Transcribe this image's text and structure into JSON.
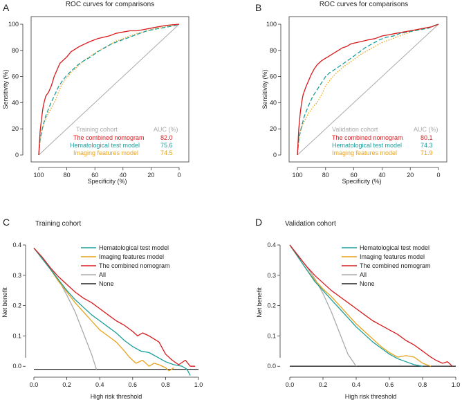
{
  "panels": {
    "A": {
      "label": "A",
      "title": "ROC curves for comparisons",
      "xlabel": "Specificity (%)",
      "ylabel": "Sensitivity (%)",
      "xticks": [
        "100",
        "80",
        "60",
        "40",
        "20",
        "0"
      ],
      "yticks": [
        "0",
        "20",
        "40",
        "60",
        "80",
        "100"
      ],
      "legend": {
        "header_left": "Training cohort",
        "header_right": "AUC (%)",
        "rows": [
          {
            "name": "The combined nomogram",
            "auc": "82.0"
          },
          {
            "name": "Hematological test model",
            "auc": "75.6"
          },
          {
            "name": "Imaging features model",
            "auc": "74.5"
          }
        ]
      }
    },
    "B": {
      "label": "B",
      "title": "ROC curves for comparisons",
      "xlabel": "Specificity (%)",
      "ylabel": "Sensitivity (%)",
      "xticks": [
        "100",
        "80",
        "60",
        "40",
        "20",
        "0"
      ],
      "yticks": [
        "0",
        "20",
        "40",
        "60",
        "80",
        "100"
      ],
      "legend": {
        "header_left": "Validation cohort",
        "header_right": "AUC (%)",
        "rows": [
          {
            "name": "The combined nomogram",
            "auc": "80.1"
          },
          {
            "name": "Hematological test model",
            "auc": "74.3"
          },
          {
            "name": "Imaging features model",
            "auc": "71.9"
          }
        ]
      }
    },
    "C": {
      "label": "C",
      "title": "Training cohort",
      "xlabel": "High risk threshold",
      "ylabel": "Net benefit",
      "xticks": [
        "0.0",
        "0.2",
        "0.4",
        "0.6",
        "0.8",
        "1.0"
      ],
      "yticks": [
        "0.0",
        "0.1",
        "0.2",
        "0.3",
        "0.4"
      ],
      "legend": [
        "Hematological test model",
        "Imaging features model",
        "The combined nomogram",
        "All",
        "None"
      ]
    },
    "D": {
      "label": "D",
      "title": "Validation cohort",
      "xlabel": "High risk threshold",
      "ylabel": "Net benefit",
      "xticks": [
        "0.0",
        "0.2",
        "0.4",
        "0.6",
        "0.8",
        "1.0"
      ],
      "yticks": [
        "0.0",
        "0.1",
        "0.2",
        "0.3",
        "0.4"
      ],
      "legend": [
        "Hematological test model",
        "Imaging features model",
        "The combined nomogram",
        "All",
        "None"
      ]
    }
  },
  "colors": {
    "combined": "#d7191c",
    "hematological": "#1a9e9a",
    "imaging": "#e8a21a",
    "all": "#aaaaaa",
    "none": "#222222",
    "legend_header": "#aaaaaa"
  },
  "chart_data": [
    {
      "type": "line",
      "id": "A",
      "title": "ROC curves for comparisons",
      "xlabel": "Specificity (%)",
      "ylabel": "Sensitivity (%)",
      "xlim": [
        100,
        0
      ],
      "ylim": [
        0,
        100
      ],
      "series": [
        {
          "name": "The combined nomogram",
          "x": [
            100,
            99,
            98,
            97,
            96,
            95,
            93,
            91,
            89,
            87,
            85,
            82,
            80,
            77,
            74,
            71,
            67,
            63,
            58,
            54,
            50,
            45,
            40,
            35,
            30,
            25,
            20,
            15,
            10,
            5,
            0
          ],
          "y": [
            0,
            18,
            28,
            36,
            41,
            45,
            48,
            53,
            60,
            65,
            70,
            73,
            75,
            79,
            81,
            83,
            85,
            87,
            89,
            90,
            91,
            93,
            94,
            95,
            95,
            96,
            97,
            98,
            99,
            99.5,
            100
          ]
        },
        {
          "name": "Hematological test model",
          "x": [
            100,
            99,
            97,
            95,
            92,
            89,
            86,
            83,
            80,
            76,
            72,
            68,
            63,
            58,
            53,
            48,
            43,
            38,
            33,
            28,
            23,
            18,
            13,
            8,
            3,
            0
          ],
          "y": [
            0,
            12,
            22,
            30,
            38,
            45,
            52,
            57,
            61,
            65,
            69,
            72,
            75,
            79,
            82,
            85,
            87,
            89,
            91,
            93,
            95,
            96,
            97,
            98,
            99,
            100
          ]
        },
        {
          "name": "Imaging features model",
          "x": [
            100,
            99,
            98,
            96,
            94,
            92,
            90,
            88,
            86,
            84,
            81,
            78,
            75,
            72,
            68,
            64,
            60,
            55,
            50,
            45,
            40,
            35,
            30,
            25,
            20,
            15,
            10,
            5,
            0
          ],
          "y": [
            0,
            10,
            18,
            25,
            30,
            34,
            38,
            42,
            48,
            53,
            58,
            62,
            65,
            68,
            72,
            75,
            78,
            81,
            84,
            87,
            89,
            91,
            93,
            94,
            96,
            97,
            98,
            99,
            100
          ]
        },
        {
          "name": "Reference",
          "x": [
            100,
            0
          ],
          "y": [
            0,
            100
          ]
        }
      ],
      "legend": {
        "title": "Training cohort",
        "auc": [
          "82.0",
          "75.6",
          "74.5"
        ]
      }
    },
    {
      "type": "line",
      "id": "B",
      "title": "ROC curves for comparisons",
      "xlabel": "Specificity (%)",
      "ylabel": "Sensitivity (%)",
      "xlim": [
        100,
        0
      ],
      "ylim": [
        0,
        100
      ],
      "series": [
        {
          "name": "The combined nomogram",
          "x": [
            100,
            99,
            98,
            97,
            96,
            94,
            92,
            90,
            88,
            86,
            83,
            80,
            77,
            74,
            71,
            68,
            65,
            62,
            58,
            54,
            50,
            45,
            40,
            35,
            30,
            25,
            20,
            15,
            10,
            5,
            0
          ],
          "y": [
            0,
            20,
            32,
            40,
            46,
            52,
            57,
            62,
            66,
            69,
            72,
            74,
            76,
            78,
            80,
            82,
            83,
            85,
            86,
            87,
            88,
            89,
            91,
            92,
            93,
            94,
            95,
            96,
            97,
            98,
            100
          ]
        },
        {
          "name": "Hematological test model",
          "x": [
            100,
            99,
            97,
            95,
            92,
            89,
            86,
            83,
            80,
            77,
            74,
            70,
            66,
            62,
            57,
            52,
            47,
            42,
            37,
            32,
            27,
            22,
            17,
            12,
            7,
            3,
            0
          ],
          "y": [
            0,
            12,
            22,
            30,
            38,
            45,
            50,
            55,
            60,
            63,
            65,
            68,
            71,
            74,
            78,
            82,
            85,
            88,
            90,
            91,
            93,
            94,
            95,
            96,
            97,
            99,
            100
          ]
        },
        {
          "name": "Imaging features model",
          "x": [
            100,
            99,
            98,
            96,
            94,
            92,
            90,
            88,
            86,
            84,
            82,
            80,
            77,
            74,
            71,
            68,
            64,
            60,
            55,
            50,
            45,
            40,
            35,
            30,
            25,
            20,
            15,
            10,
            5,
            0
          ],
          "y": [
            0,
            10,
            18,
            24,
            28,
            32,
            35,
            38,
            40,
            44,
            48,
            53,
            57,
            61,
            64,
            67,
            70,
            73,
            77,
            80,
            83,
            86,
            88,
            90,
            92,
            94,
            96,
            97,
            98,
            100
          ]
        },
        {
          "name": "Reference",
          "x": [
            100,
            0
          ],
          "y": [
            0,
            100
          ]
        }
      ],
      "legend": {
        "title": "Validation cohort",
        "auc": [
          "80.1",
          "74.3",
          "71.9"
        ]
      }
    },
    {
      "type": "line",
      "id": "C",
      "title": "Training cohort",
      "xlabel": "High risk threshold",
      "ylabel": "Net benefit",
      "xlim": [
        0,
        1
      ],
      "ylim": [
        -0.02,
        0.4
      ],
      "series": [
        {
          "name": "Hematological test model",
          "x": [
            0,
            0.05,
            0.1,
            0.15,
            0.2,
            0.25,
            0.3,
            0.35,
            0.4,
            0.45,
            0.5,
            0.55,
            0.6,
            0.65,
            0.7,
            0.75,
            0.8,
            0.85,
            0.9,
            0.93,
            0.95
          ],
          "y": [
            0.39,
            0.355,
            0.32,
            0.285,
            0.25,
            0.22,
            0.195,
            0.17,
            0.15,
            0.13,
            0.11,
            0.085,
            0.065,
            0.05,
            0.045,
            0.03,
            0.015,
            0.005,
            0.0,
            -0.01,
            -0.03
          ]
        },
        {
          "name": "Imaging features model",
          "x": [
            0,
            0.05,
            0.1,
            0.15,
            0.2,
            0.25,
            0.3,
            0.35,
            0.4,
            0.45,
            0.5,
            0.55,
            0.58,
            0.62,
            0.66,
            0.7,
            0.73,
            0.76,
            0.8,
            0.82,
            0.85
          ],
          "y": [
            0.39,
            0.355,
            0.32,
            0.28,
            0.245,
            0.21,
            0.18,
            0.15,
            0.12,
            0.1,
            0.08,
            0.05,
            0.03,
            0.01,
            0.02,
            0.0,
            0.01,
            0.005,
            -0.005,
            -0.015,
            -0.005
          ]
        },
        {
          "name": "The combined nomogram",
          "x": [
            0,
            0.05,
            0.1,
            0.15,
            0.2,
            0.25,
            0.3,
            0.35,
            0.4,
            0.45,
            0.5,
            0.55,
            0.6,
            0.63,
            0.66,
            0.7,
            0.73,
            0.76,
            0.8,
            0.84,
            0.88,
            0.92,
            0.95,
            0.98
          ],
          "y": [
            0.39,
            0.36,
            0.325,
            0.295,
            0.27,
            0.245,
            0.225,
            0.21,
            0.19,
            0.17,
            0.15,
            0.135,
            0.115,
            0.1,
            0.11,
            0.1,
            0.09,
            0.08,
            0.04,
            0.02,
            0.005,
            0.02,
            0.0,
            0.0
          ]
        },
        {
          "name": "All",
          "x": [
            0,
            0.05,
            0.1,
            0.15,
            0.2,
            0.25,
            0.3,
            0.35,
            0.38
          ],
          "y": [
            0.39,
            0.36,
            0.325,
            0.285,
            0.235,
            0.18,
            0.11,
            0.04,
            -0.01
          ]
        },
        {
          "name": "None",
          "x": [
            0,
            1
          ],
          "y": [
            -0.01,
            -0.01
          ]
        }
      ]
    },
    {
      "type": "line",
      "id": "D",
      "title": "Validation cohort",
      "xlabel": "High risk threshold",
      "ylabel": "Net benefit",
      "xlim": [
        0,
        1
      ],
      "ylim": [
        -0.02,
        0.4
      ],
      "series": [
        {
          "name": "Hematological test model",
          "x": [
            0,
            0.05,
            0.1,
            0.15,
            0.2,
            0.25,
            0.3,
            0.35,
            0.4,
            0.45,
            0.5,
            0.55,
            0.6,
            0.65,
            0.7,
            0.75,
            0.8
          ],
          "y": [
            0.4,
            0.36,
            0.32,
            0.28,
            0.25,
            0.22,
            0.19,
            0.16,
            0.13,
            0.105,
            0.08,
            0.06,
            0.04,
            0.025,
            0.015,
            0.005,
            0.0
          ]
        },
        {
          "name": "Imaging features model",
          "x": [
            0,
            0.05,
            0.1,
            0.15,
            0.2,
            0.25,
            0.3,
            0.35,
            0.4,
            0.45,
            0.5,
            0.55,
            0.6,
            0.65,
            0.7,
            0.75,
            0.8,
            0.85
          ],
          "y": [
            0.4,
            0.36,
            0.32,
            0.285,
            0.255,
            0.23,
            0.2,
            0.17,
            0.14,
            0.115,
            0.09,
            0.065,
            0.045,
            0.03,
            0.035,
            0.03,
            0.01,
            0.0
          ]
        },
        {
          "name": "The combined nomogram",
          "x": [
            0,
            0.05,
            0.1,
            0.15,
            0.2,
            0.25,
            0.3,
            0.35,
            0.4,
            0.45,
            0.5,
            0.55,
            0.6,
            0.65,
            0.7,
            0.75,
            0.8,
            0.85,
            0.88,
            0.92,
            0.95,
            0.98
          ],
          "y": [
            0.4,
            0.365,
            0.33,
            0.3,
            0.275,
            0.25,
            0.23,
            0.21,
            0.19,
            0.17,
            0.15,
            0.135,
            0.12,
            0.105,
            0.085,
            0.07,
            0.05,
            0.03,
            0.02,
            0.01,
            0.015,
            0.0
          ]
        },
        {
          "name": "All",
          "x": [
            0,
            0.05,
            0.1,
            0.15,
            0.2,
            0.25,
            0.3,
            0.35,
            0.4
          ],
          "y": [
            0.4,
            0.365,
            0.33,
            0.29,
            0.24,
            0.18,
            0.11,
            0.04,
            0.0
          ]
        },
        {
          "name": "None",
          "x": [
            0,
            1
          ],
          "y": [
            0,
            0
          ]
        }
      ]
    }
  ]
}
